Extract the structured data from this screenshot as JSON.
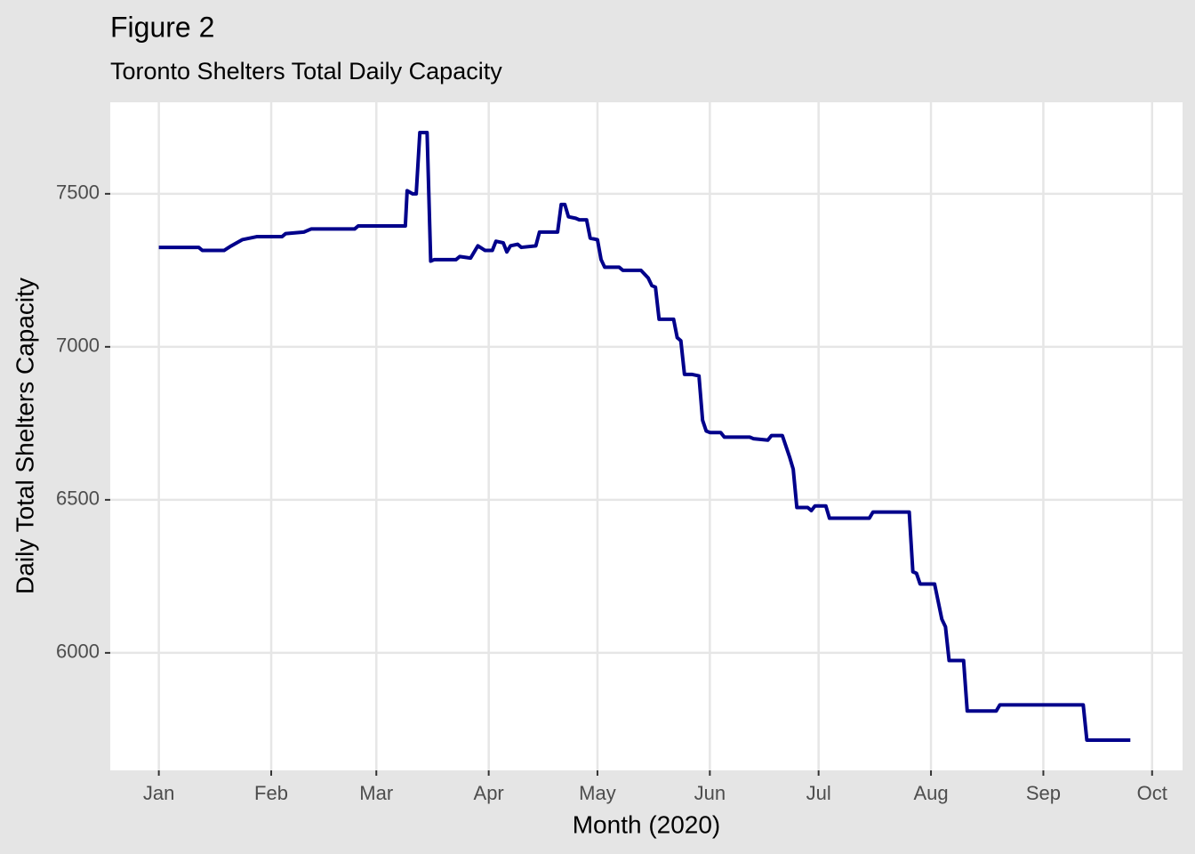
{
  "chart_data": {
    "type": "line",
    "title": "Figure 2",
    "subtitle": "Toronto Shelters Total Daily Capacity",
    "x_label": "Month (2020)",
    "y_label": "Daily Total Shelters Capacity",
    "color": "#00008b",
    "grid": true,
    "x": [
      0,
      11,
      12,
      18,
      20,
      23,
      27,
      34,
      35,
      40,
      42,
      54,
      55,
      68,
      68.5,
      70,
      71,
      72,
      74,
      75,
      76,
      82,
      83,
      86,
      88,
      90,
      92,
      93,
      95,
      96,
      97,
      99,
      100,
      104,
      105,
      110,
      111,
      112,
      113,
      115,
      116,
      118,
      119,
      121,
      122,
      123,
      127,
      128,
      133,
      135,
      136,
      137,
      138,
      142,
      143,
      144,
      145,
      147,
      149,
      150,
      151,
      152,
      155,
      156,
      163,
      164,
      168,
      169,
      172,
      174,
      175,
      176,
      179,
      180,
      181,
      184,
      185,
      196,
      197,
      207,
      208,
      209,
      210,
      214,
      216,
      217,
      218,
      222,
      223,
      231,
      232,
      255,
      256,
      268
    ],
    "values": [
      7325,
      7325,
      7315,
      7315,
      7330,
      7350,
      7360,
      7360,
      7370,
      7375,
      7385,
      7385,
      7395,
      7395,
      7510,
      7500,
      7500,
      7700,
      7700,
      7280,
      7285,
      7285,
      7295,
      7290,
      7330,
      7315,
      7315,
      7345,
      7340,
      7310,
      7330,
      7335,
      7325,
      7330,
      7375,
      7375,
      7465,
      7465,
      7425,
      7420,
      7415,
      7415,
      7355,
      7350,
      7285,
      7260,
      7260,
      7250,
      7250,
      7225,
      7200,
      7195,
      7090,
      7090,
      7030,
      7020,
      6910,
      6910,
      6905,
      6760,
      6725,
      6720,
      6720,
      6705,
      6705,
      6700,
      6695,
      6710,
      6710,
      6640,
      6600,
      6475,
      6475,
      6465,
      6480,
      6480,
      6440,
      6440,
      6460,
      6460,
      6265,
      6260,
      6225,
      6225,
      6110,
      6085,
      5975,
      5975,
      5810,
      5810,
      5830,
      5830,
      5715,
      5715
    ],
    "xlim": [
      -13.4,
      282.4
    ],
    "xticks": [
      {
        "value": 0,
        "label": "Jan"
      },
      {
        "value": 31,
        "label": "Feb"
      },
      {
        "value": 60,
        "label": "Mar"
      },
      {
        "value": 91,
        "label": "Apr"
      },
      {
        "value": 121,
        "label": "May"
      },
      {
        "value": 152,
        "label": "Jun"
      },
      {
        "value": 182,
        "label": "Jul"
      },
      {
        "value": 213,
        "label": "Aug"
      },
      {
        "value": 244,
        "label": "Sep"
      },
      {
        "value": 274,
        "label": "Oct"
      }
    ],
    "ylim": [
      5616,
      7799
    ],
    "yticks": [
      6000,
      6500,
      7000,
      7500
    ]
  }
}
